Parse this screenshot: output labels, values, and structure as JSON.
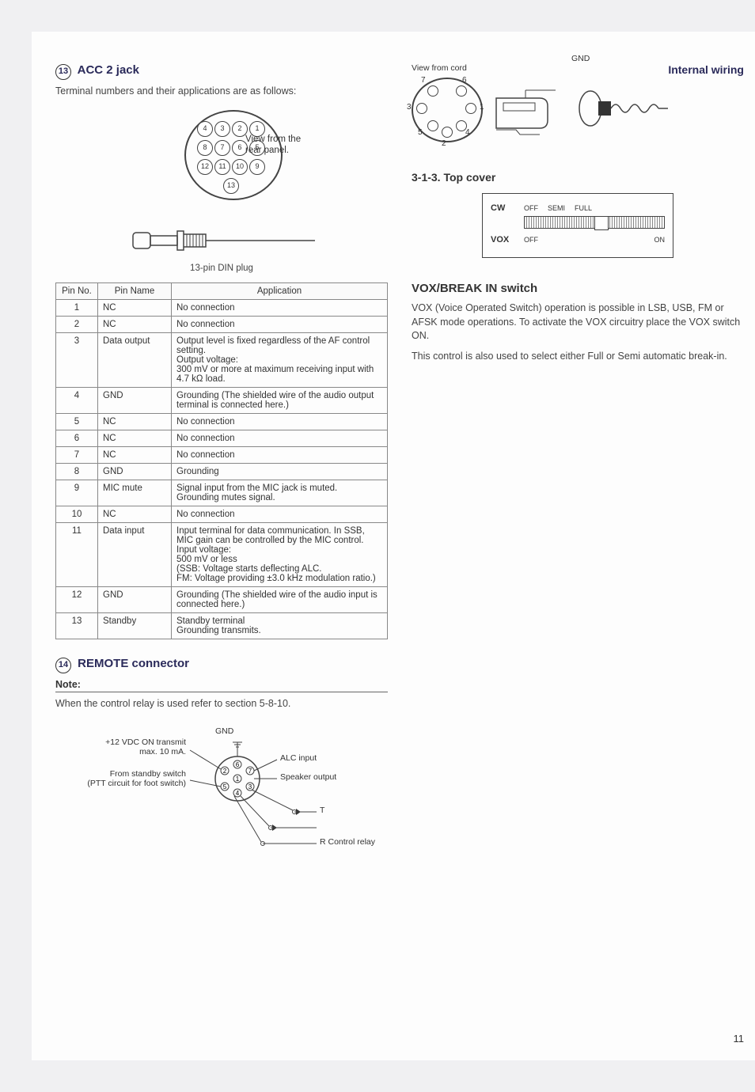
{
  "left": {
    "heading_num": "13",
    "heading_text": "ACC 2 jack",
    "intro": "Terminal numbers and their applications are as follows:",
    "din_view_label": "View from the\nrear panel.",
    "plug_caption": "13-pin DIN plug",
    "table": {
      "headers": [
        "Pin No.",
        "Pin Name",
        "Application"
      ],
      "rows": [
        {
          "no": "1",
          "name": "NC",
          "app": "No connection"
        },
        {
          "no": "2",
          "name": "NC",
          "app": "No connection"
        },
        {
          "no": "3",
          "name": "Data output",
          "app": "Output level is fixed regardless of the AF control setting.\nOutput voltage:\n  300 mV or more at maximum receiving input with 4.7 kΩ load."
        },
        {
          "no": "4",
          "name": "GND",
          "app": "Grounding (The shielded wire of the audio output terminal is connected here.)"
        },
        {
          "no": "5",
          "name": "NC",
          "app": "No connection"
        },
        {
          "no": "6",
          "name": "NC",
          "app": "No connection"
        },
        {
          "no": "7",
          "name": "NC",
          "app": "No connection"
        },
        {
          "no": "8",
          "name": "GND",
          "app": "Grounding"
        },
        {
          "no": "9",
          "name": "MIC mute",
          "app": "Signal input from the MIC jack is muted. Grounding mutes signal."
        },
        {
          "no": "10",
          "name": "NC",
          "app": "No connection"
        },
        {
          "no": "11",
          "name": "Data input",
          "app": "Input terminal for data communication. In SSB, MIC gain can be controlled by the MIC control.\nInput voltage:\n  500 mV or less\n  (SSB: Voltage starts deflecting ALC.\n   FM: Voltage providing ±3.0 kHz modulation ratio.)"
        },
        {
          "no": "12",
          "name": "GND",
          "app": "Grounding (The shielded wire of the audio input is connected here.)"
        },
        {
          "no": "13",
          "name": "Standby",
          "app": "Standby terminal\nGrounding transmits."
        }
      ]
    },
    "remote_heading_num": "14",
    "remote_heading": "REMOTE connector",
    "note_label": "Note:",
    "note_text": "When the control relay is used refer to section 5-8-10.",
    "remote_labels": {
      "top1": "+12 VDC ON transmit\nmax. 10 mA.",
      "top2": "From standby switch\n(PTT circuit for foot switch)",
      "gnd": "GND",
      "alc": "ALC input",
      "spk": "Speaker output",
      "t": "T",
      "r": "R Control relay"
    }
  },
  "right": {
    "view_from_cord": "View from cord",
    "internal_wiring": "Internal wiring",
    "gnd": "GND",
    "c7_pins": [
      "1",
      "2",
      "3",
      "4",
      "5",
      "6",
      "7"
    ],
    "top_cover_title": "3-1-3.  Top cover",
    "switch": {
      "cw": "CW",
      "cw_off": "OFF",
      "cw_semi": "SEMI",
      "cw_full": "FULL",
      "vox": "VOX",
      "vox_off": "OFF",
      "vox_on": "ON"
    },
    "vox_heading": "VOX/BREAK IN switch",
    "vox_p1": "VOX (Voice Operated Switch) operation is possible in LSB, USB, FM or AFSK mode operations. To activate the VOX circuitry place the VOX switch ON.",
    "vox_p2": "This control is also used to select either Full or Semi automatic break-in."
  },
  "page_number": "11"
}
